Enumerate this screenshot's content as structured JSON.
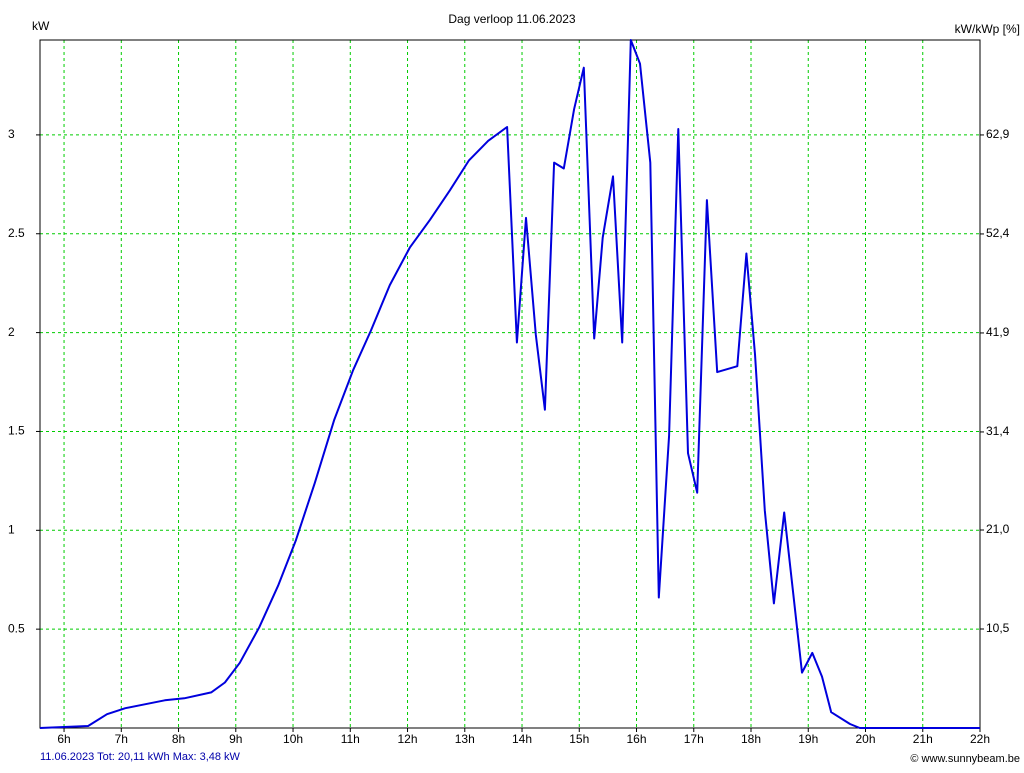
{
  "chart_data": {
    "type": "line",
    "title": "Dag  verloop 11.06.2023",
    "y_label": "kW",
    "y2_label": "kW/kWp [%]",
    "footer_left": "11.06.2023 Tot: 20,11 kWh Max: 3,48 kW",
    "footer_right": "© www.sunnybeam.be",
    "grid": true,
    "xlim": [
      5.58,
      22
    ],
    "xticks": [
      {
        "value": 6,
        "label": "6h"
      },
      {
        "value": 7,
        "label": "7h"
      },
      {
        "value": 8,
        "label": "8h"
      },
      {
        "value": 9,
        "label": "9h"
      },
      {
        "value": 10,
        "label": "10h"
      },
      {
        "value": 11,
        "label": "11h"
      },
      {
        "value": 12,
        "label": "12h"
      },
      {
        "value": 13,
        "label": "13h"
      },
      {
        "value": 14,
        "label": "14h"
      },
      {
        "value": 15,
        "label": "15h"
      },
      {
        "value": 16,
        "label": "16h"
      },
      {
        "value": 17,
        "label": "17h"
      },
      {
        "value": 18,
        "label": "18h"
      },
      {
        "value": 19,
        "label": "19h"
      },
      {
        "value": 20,
        "label": "20h"
      },
      {
        "value": 21,
        "label": "21h"
      },
      {
        "value": 22,
        "label": "22h"
      }
    ],
    "ylim": [
      0,
      3.48
    ],
    "yticks": [
      0.5,
      1,
      1.5,
      2,
      2.5,
      3
    ],
    "y2lim": [
      0,
      72.97
    ],
    "y2ticks": [
      {
        "value": 10.5,
        "label": "10,5"
      },
      {
        "value": 21.0,
        "label": "21,0"
      },
      {
        "value": 31.4,
        "label": "31,4"
      },
      {
        "value": 41.9,
        "label": "41,9"
      },
      {
        "value": 52.4,
        "label": "52,4"
      },
      {
        "value": 62.9,
        "label": "62,9"
      }
    ],
    "x": [
      5.58,
      6.42,
      6.75,
      7.07,
      7.41,
      7.76,
      8.1,
      8.57,
      8.81,
      9.07,
      9.41,
      9.74,
      10.05,
      10.38,
      10.72,
      11.05,
      11.36,
      11.69,
      12.04,
      12.39,
      12.74,
      13.07,
      13.41,
      13.74,
      13.91,
      14.07,
      14.24,
      14.4,
      14.56,
      14.73,
      14.91,
      15.08,
      15.26,
      15.41,
      15.59,
      15.75,
      15.9,
      16.06,
      16.24,
      16.39,
      16.57,
      16.73,
      16.9,
      17.06,
      17.23,
      17.41,
      17.76,
      17.92,
      18.07,
      18.24,
      18.4,
      18.58,
      18.73,
      18.89,
      19.07,
      19.24,
      19.4,
      19.73,
      19.9,
      22
    ],
    "series": [
      {
        "name": "kW",
        "color": "#0000dd",
        "values": [
          0,
          0.01,
          0.07,
          0.1,
          0.12,
          0.14,
          0.15,
          0.18,
          0.23,
          0.33,
          0.51,
          0.72,
          0.95,
          1.24,
          1.56,
          1.81,
          2.01,
          2.24,
          2.43,
          2.57,
          2.72,
          2.87,
          2.97,
          3.04,
          1.95,
          2.58,
          1.99,
          1.61,
          2.86,
          2.83,
          3.13,
          3.34,
          1.97,
          2.48,
          2.79,
          1.95,
          3.48,
          3.36,
          2.86,
          0.66,
          1.48,
          3.03,
          1.39,
          1.19,
          2.67,
          1.8,
          1.83,
          2.4,
          1.89,
          1.1,
          0.63,
          1.09,
          0.7,
          0.28,
          0.38,
          0.26,
          0.08,
          0.02,
          0,
          0
        ]
      }
    ]
  }
}
